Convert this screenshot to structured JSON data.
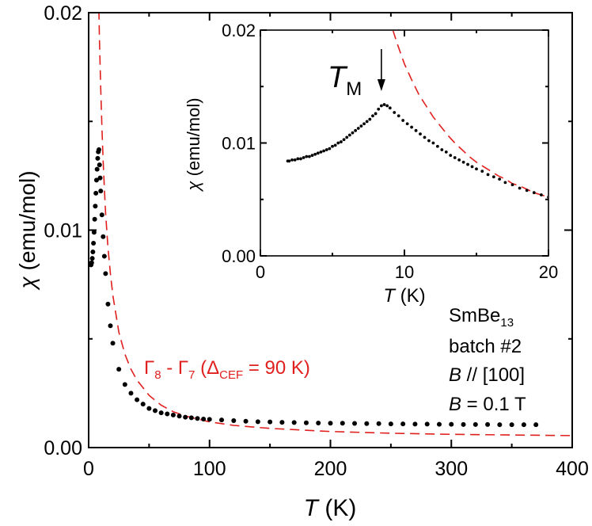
{
  "chart_data": [
    {
      "type": "scatter",
      "xlabel_symbol": "T",
      "xlabel_unit": " (K)",
      "ylabel_symbol": "χ",
      "ylabel_unit": " (emu/mol)",
      "xlim": [
        0,
        400
      ],
      "ylim": [
        0,
        0.02
      ],
      "x_ticks": [
        0,
        100,
        200,
        300,
        400
      ],
      "y_ticks": [
        0.0,
        0.01,
        0.02
      ],
      "x_tick_labels": [
        "0",
        "100",
        "200",
        "300",
        "400"
      ],
      "y_tick_labels": [
        "0.00",
        "0.01",
        "0.02"
      ],
      "series": [
        {
          "name": "data",
          "x": [
            2,
            2.5,
            3,
            3.5,
            4,
            4.5,
            5,
            5.5,
            6,
            6.5,
            7,
            7.5,
            8,
            8.5,
            9,
            9.5,
            10,
            11,
            12,
            13,
            14,
            16,
            18,
            20,
            25,
            30,
            35,
            40,
            45,
            50,
            55,
            60,
            65,
            70,
            75,
            80,
            85,
            90,
            95,
            100,
            110,
            120,
            130,
            140,
            150,
            160,
            170,
            180,
            190,
            200,
            210,
            220,
            230,
            240,
            250,
            260,
            270,
            280,
            290,
            300,
            310,
            320,
            330,
            340,
            350,
            360,
            370
          ],
          "y": [
            0.0084,
            0.0085,
            0.0087,
            0.009,
            0.0094,
            0.0099,
            0.0105,
            0.0111,
            0.0117,
            0.0123,
            0.0128,
            0.0133,
            0.0136,
            0.0137,
            0.013,
            0.0124,
            0.0118,
            0.0107,
            0.0097,
            0.0088,
            0.008,
            0.0066,
            0.0056,
            0.0048,
            0.0036,
            0.0029,
            0.0025,
            0.0022,
            0.002,
            0.0018,
            0.0017,
            0.0016,
            0.00155,
            0.0015,
            0.00145,
            0.0014,
            0.00137,
            0.00134,
            0.00131,
            0.0013,
            0.00127,
            0.00124,
            0.00121,
            0.00119,
            0.00118,
            0.00116,
            0.00115,
            0.00114,
            0.00113,
            0.00112,
            0.00112,
            0.00111,
            0.0011,
            0.0011,
            0.00109,
            0.00109,
            0.00108,
            0.00108,
            0.00107,
            0.00107,
            0.00106,
            0.00106,
            0.00106,
            0.00105,
            0.00105,
            0.00105,
            0.00105
          ]
        },
        {
          "name": "fit",
          "label_parts": [
            "Γ",
            "8",
            " - Γ",
            "7",
            " (Δ",
            "CEF",
            " = 90 K)"
          ],
          "x": [
            8,
            9,
            10,
            11,
            12,
            13,
            14,
            16,
            18,
            20,
            25,
            30,
            35,
            40,
            50,
            60,
            70,
            80,
            100,
            120,
            150,
            200,
            250,
            300,
            350,
            400
          ],
          "y": [
            0.0215,
            0.0187,
            0.0165,
            0.0147,
            0.0132,
            0.0119,
            0.0108,
            0.0092,
            0.008,
            0.007,
            0.0053,
            0.0043,
            0.0036,
            0.0031,
            0.0024,
            0.00195,
            0.00165,
            0.00145,
            0.00118,
            0.00102,
            0.00088,
            0.00074,
            0.00066,
            0.00061,
            0.00058,
            0.00055
          ]
        }
      ]
    },
    {
      "type": "scatter",
      "name": "inset",
      "xlabel_symbol": "T",
      "xlabel_unit": " (K)",
      "ylabel_symbol": "χ",
      "ylabel_unit": " (emu/mol)",
      "xlim": [
        0,
        20
      ],
      "ylim": [
        0,
        0.02
      ],
      "x_ticks": [
        0,
        10,
        20
      ],
      "y_ticks": [
        0.0,
        0.01,
        0.02
      ],
      "x_tick_labels": [
        "0",
        "10",
        "20"
      ],
      "y_tick_labels": [
        "0.00",
        "0.01",
        "0.02"
      ],
      "annotation": {
        "symbol": "T",
        "subscript": "M",
        "x": 8.4
      },
      "series": [
        {
          "name": "data",
          "x": [
            1.9,
            2.0,
            2.2,
            2.4,
            2.6,
            2.8,
            3.0,
            3.2,
            3.4,
            3.6,
            3.8,
            4.0,
            4.2,
            4.4,
            4.6,
            4.8,
            5.0,
            5.2,
            5.4,
            5.6,
            5.8,
            6.0,
            6.2,
            6.4,
            6.6,
            6.8,
            7.0,
            7.2,
            7.4,
            7.6,
            7.8,
            8.0,
            8.2,
            8.4,
            8.6,
            8.8,
            9.0,
            9.3,
            9.6,
            9.9,
            10.2,
            10.5,
            10.8,
            11.1,
            11.4,
            11.7,
            12.0,
            12.3,
            12.6,
            12.9,
            13.2,
            13.5,
            13.8,
            14.1,
            14.4,
            14.7,
            15.0,
            15.4,
            15.8,
            16.2,
            16.6,
            17.0,
            17.5,
            18.0,
            18.5,
            19.0,
            19.5,
            20.0
          ],
          "y": [
            0.0084,
            0.0084,
            0.0085,
            0.0085,
            0.0086,
            0.0086,
            0.0087,
            0.0088,
            0.0088,
            0.0089,
            0.009,
            0.0091,
            0.0092,
            0.0093,
            0.0094,
            0.0095,
            0.0097,
            0.0098,
            0.01,
            0.0101,
            0.0103,
            0.0105,
            0.0107,
            0.0109,
            0.0111,
            0.0113,
            0.0115,
            0.0117,
            0.0119,
            0.0121,
            0.0124,
            0.0126,
            0.013,
            0.0133,
            0.0134,
            0.0133,
            0.0131,
            0.0127,
            0.0124,
            0.012,
            0.0117,
            0.0114,
            0.0111,
            0.0108,
            0.0105,
            0.0102,
            0.01,
            0.0097,
            0.0094,
            0.0092,
            0.0089,
            0.0087,
            0.0085,
            0.0083,
            0.0081,
            0.0079,
            0.0077,
            0.0075,
            0.0072,
            0.007,
            0.0068,
            0.0065,
            0.0063,
            0.006,
            0.0058,
            0.0056,
            0.0054,
            0.0052
          ]
        },
        {
          "name": "fit",
          "x": [
            9.2,
            9.5,
            10,
            10.5,
            11,
            11.5,
            12,
            12.5,
            13,
            13.5,
            14,
            14.5,
            15,
            15.5,
            16,
            16.5,
            17,
            17.5,
            18,
            18.5,
            19,
            19.5,
            20
          ],
          "y": [
            0.02,
            0.0188,
            0.017,
            0.0156,
            0.0143,
            0.0133,
            0.0123,
            0.0115,
            0.0107,
            0.01,
            0.0094,
            0.0088,
            0.0083,
            0.0079,
            0.0075,
            0.0071,
            0.0068,
            0.0064,
            0.0062,
            0.0059,
            0.0056,
            0.0054,
            0.0052
          ]
        }
      ]
    }
  ],
  "sample_info": {
    "line1_main": "SmBe",
    "line1_sub": "13",
    "line2": "batch #2",
    "line3_symbol": "B",
    "line3_rest": " // [100]",
    "line4_symbol": "B",
    "line4_rest": " = 0.1 T"
  }
}
